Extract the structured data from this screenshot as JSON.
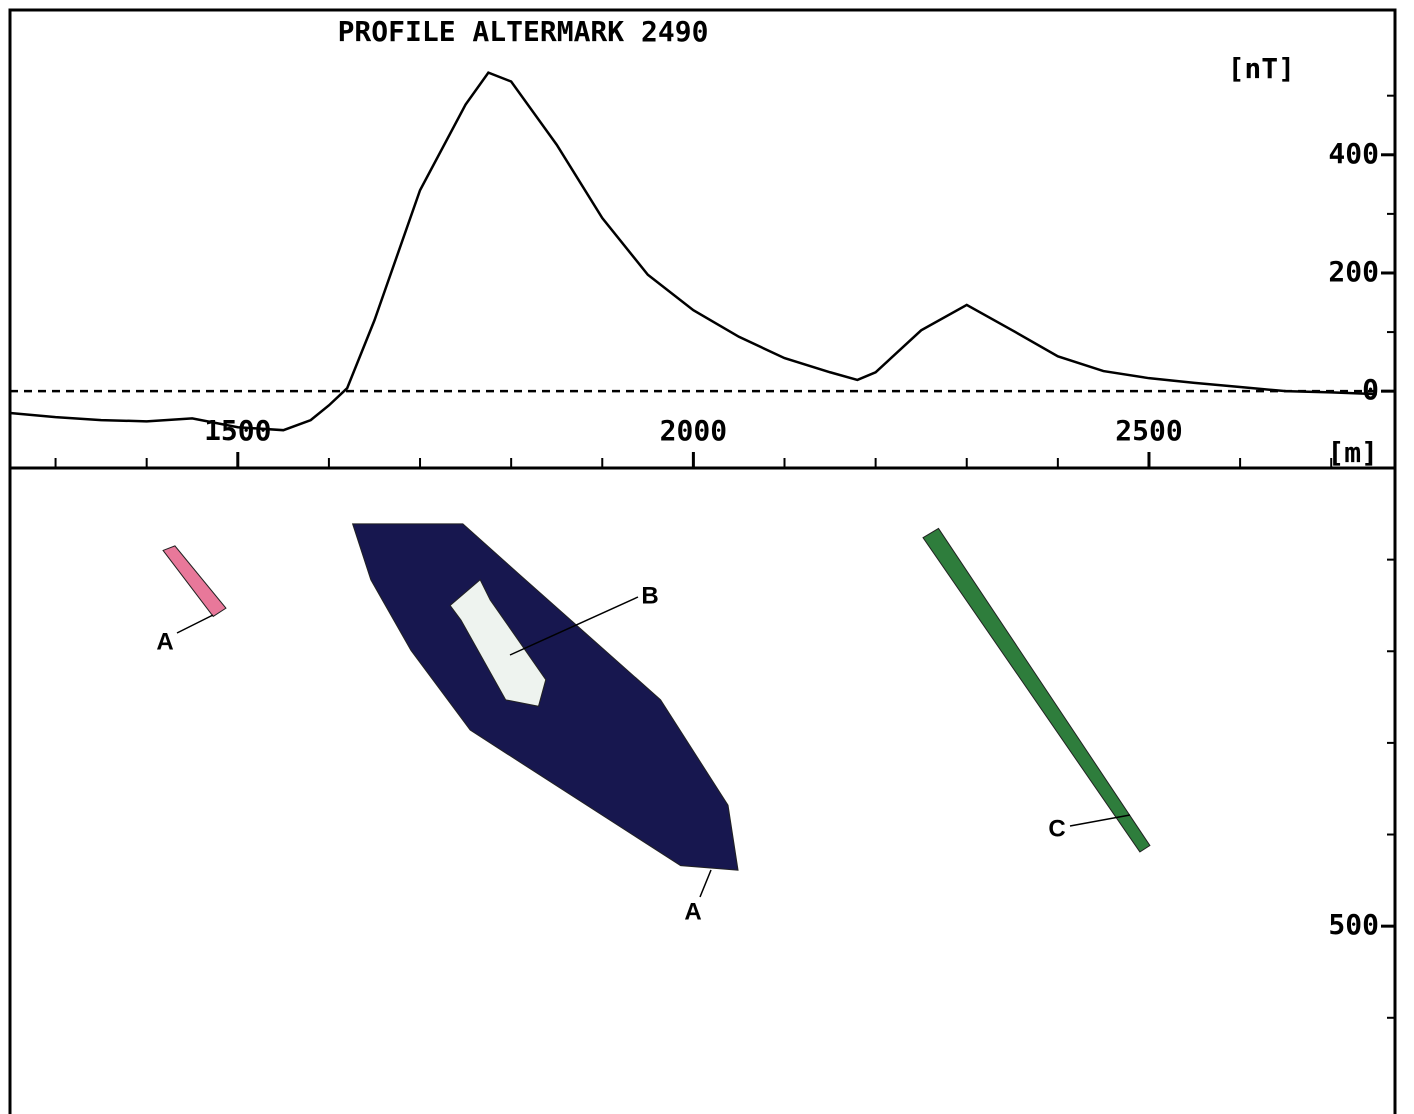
{
  "chart_data": [
    {
      "type": "line",
      "title": "PROFILE ALTERMARK 2490",
      "y_unit": "[nT]",
      "x_unit": "[m]",
      "x": [
        1250,
        1300,
        1350,
        1400,
        1450,
        1500,
        1550,
        1580,
        1600,
        1620,
        1650,
        1700,
        1750,
        1775,
        1800,
        1850,
        1900,
        1950,
        2000,
        2050,
        2100,
        2150,
        2180,
        2200,
        2250,
        2300,
        2350,
        2400,
        2450,
        2500,
        2550,
        2600,
        2650,
        2700,
        2750
      ],
      "values": [
        -37,
        -44,
        -49,
        -51,
        -46,
        -61,
        -66,
        -49,
        -24,
        5,
        120,
        340,
        485,
        539,
        524,
        417,
        293,
        197,
        137,
        92,
        56,
        32,
        19,
        32,
        103,
        146,
        103,
        59,
        34,
        22,
        14,
        7,
        0,
        -2,
        -5
      ],
      "color": "#000000",
      "xlim": [
        1250,
        2770
      ],
      "xticks": [
        1500,
        2000,
        2500
      ],
      "xticks_minor": [
        1300,
        1400,
        1600,
        1700,
        1800,
        1900,
        2100,
        2200,
        2300,
        2400,
        2600,
        2700
      ],
      "ylim": [
        -130,
        645
      ],
      "yticks": [
        0,
        200,
        400
      ],
      "yticks_minor": [
        100,
        300,
        500
      ],
      "zero_line": true
    },
    {
      "type": "section",
      "xlim": [
        1250,
        2770
      ],
      "ylim": [
        705,
        0
      ],
      "yticks": [
        500
      ],
      "yticks_minor": [
        100,
        200,
        300,
        400,
        600
      ],
      "bodies": [
        {
          "label": "A",
          "color": "#e8789a",
          "x": [
            1418,
            1431,
            1487,
            1473
          ],
          "y": [
            90,
            85,
            153,
            162
          ]
        },
        {
          "label": "A",
          "color": "#17174f",
          "x": [
            1626,
            1747,
            1810,
            1964,
            2038,
            2049,
            1986,
            1755,
            1690,
            1646
          ],
          "y": [
            61,
            61,
            117,
            253,
            368,
            439,
            434,
            286,
            199,
            122
          ]
        },
        {
          "label": "B",
          "color": "#eef3ef",
          "x": [
            1733,
            1766,
            1777,
            1838,
            1830,
            1794,
            1745
          ],
          "y": [
            150,
            122,
            144,
            231,
            260,
            253,
            166
          ]
        },
        {
          "label": "C",
          "color": "#2e7d3c",
          "x": [
            2252,
            2269,
            2501,
            2490
          ],
          "y": [
            76,
            66,
            412,
            419
          ]
        }
      ]
    }
  ]
}
